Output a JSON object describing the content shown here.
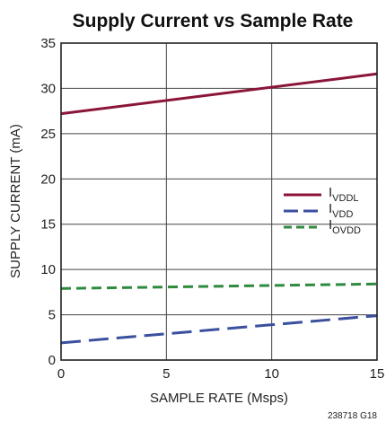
{
  "chart_data": {
    "type": "line",
    "title": "Supply Current vs Sample Rate",
    "xlabel": "SAMPLE RATE (Msps)",
    "ylabel": "SUPPLY CURRENT (mA)",
    "xlim": [
      0,
      15
    ],
    "ylim": [
      0,
      35
    ],
    "xticks": [
      "0",
      "5",
      "10",
      "15"
    ],
    "yticks": [
      "0",
      "5",
      "10",
      "15",
      "20",
      "25",
      "30",
      "35"
    ],
    "grid": true,
    "legend_position": "right",
    "series": [
      {
        "name": "I",
        "sub": "VDDL",
        "color": "#8b1538",
        "dash": "solid",
        "x": [
          0,
          15
        ],
        "values": [
          27.2,
          31.6
        ]
      },
      {
        "name": "I",
        "sub": "VDD",
        "color": "#3a4f9e",
        "dash": "long-dash",
        "x": [
          0,
          15
        ],
        "values": [
          1.9,
          4.9
        ]
      },
      {
        "name": "I",
        "sub": "OVDD",
        "color": "#2e8b3e",
        "dash": "dash",
        "x": [
          0,
          15
        ],
        "values": [
          7.9,
          8.4
        ]
      }
    ]
  },
  "figure_code": "238718 G18"
}
